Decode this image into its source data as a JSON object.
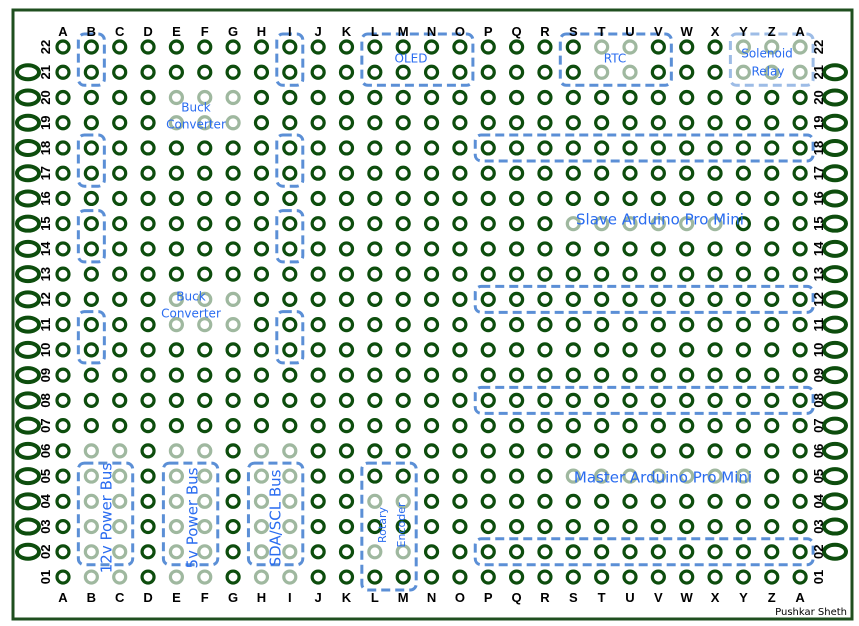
{
  "columns": [
    "A",
    "B",
    "C",
    "D",
    "E",
    "F",
    "G",
    "H",
    "I",
    "J",
    "K",
    "L",
    "M",
    "N",
    "O",
    "P",
    "Q",
    "R",
    "S",
    "T",
    "U",
    "V",
    "W",
    "X",
    "Y",
    "Z",
    "A"
  ],
  "rows": [
    "22",
    "21",
    "20",
    "19",
    "18",
    "17",
    "16",
    "15",
    "14",
    "13",
    "12",
    "11",
    "10",
    "09",
    "08",
    "07",
    "06",
    "05",
    "04",
    "03",
    "02",
    "01"
  ],
  "components": {
    "buck_converter_1": [
      "Buck",
      "Converter"
    ],
    "buck_converter_2": [
      "Buck",
      "Converter"
    ],
    "oled": "OLED",
    "rtc": "RTC",
    "solenoid_relay": [
      "Solenoid",
      "Relay"
    ],
    "slave": "Slave Arduino Pro Mini",
    "master": "Master Arduino Pro Mini",
    "power_12v": "12v Power Bus",
    "power_5v": "5v Power Bus",
    "i2c_bus": "SDA/SCL Bus",
    "rotary_encoder": [
      "Rotary",
      "Encoder"
    ]
  },
  "signature": "Pushkar Sheth",
  "colors": {
    "hole": "#0d4d0d",
    "faded_hole": "#9fb89f",
    "box": "#5b8fd6",
    "label": "#2a6cf0",
    "border": "#1f4f1f"
  }
}
